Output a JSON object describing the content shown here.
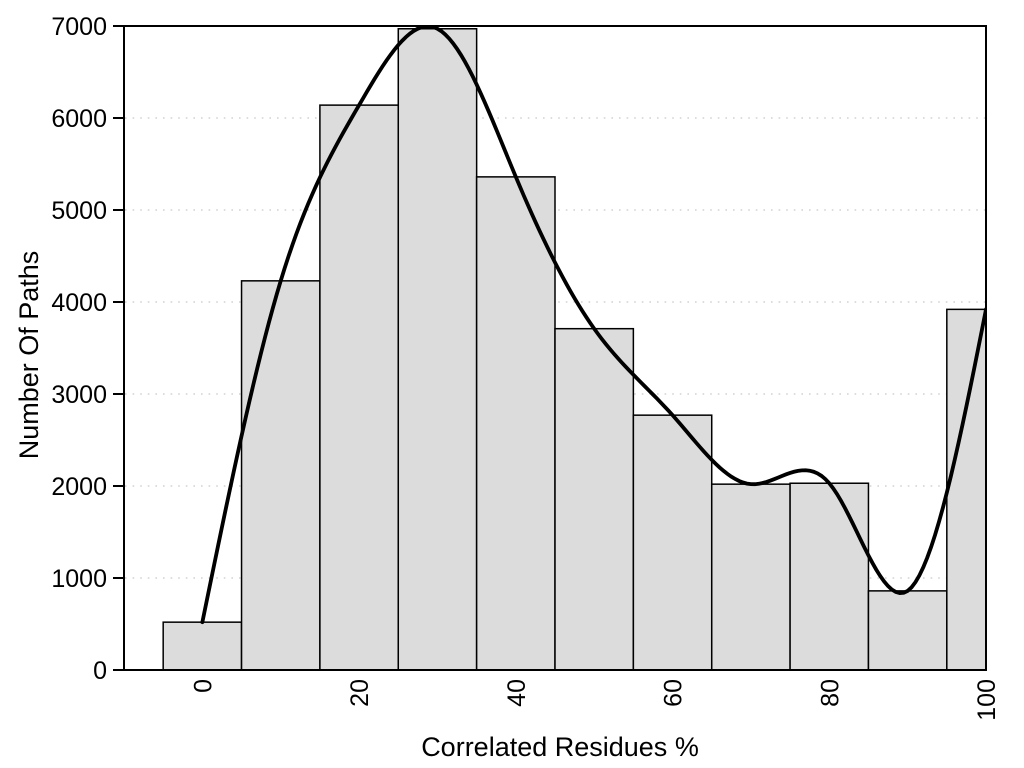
{
  "chart_data": {
    "type": "bar",
    "subtype": "histogram-with-smooth-spline-overlay",
    "title": "",
    "xlabel": "Correlated Residues %",
    "ylabel": "Number Of Paths",
    "bin_centers": [
      0,
      10,
      20,
      30,
      40,
      50,
      60,
      70,
      80,
      90,
      100
    ],
    "bin_width": 10,
    "values": [
      520,
      4230,
      6140,
      6970,
      5360,
      3710,
      2770,
      2020,
      2030,
      860,
      3920
    ],
    "series": [
      {
        "name": "path-count-histogram",
        "type": "bar",
        "x": [
          0,
          10,
          20,
          30,
          40,
          50,
          60,
          70,
          80,
          90,
          100
        ],
        "values": [
          520,
          4230,
          6140,
          6970,
          5360,
          3710,
          2770,
          2020,
          2030,
          860,
          3920
        ]
      },
      {
        "name": "smooth-spline-curve",
        "type": "line",
        "x": [
          0,
          10,
          20,
          30,
          40,
          50,
          60,
          70,
          80,
          90,
          100
        ],
        "values": [
          520,
          4230,
          6140,
          6970,
          5360,
          3710,
          2770,
          2020,
          2030,
          860,
          3920
        ],
        "interpolation": "natural-cubic-spline"
      }
    ],
    "xticks": [
      0,
      20,
      40,
      60,
      80,
      100
    ],
    "yticks": [
      0,
      1000,
      2000,
      3000,
      4000,
      5000,
      6000,
      7000
    ],
    "xlim": [
      -10,
      100
    ],
    "ylim": [
      0,
      7000
    ],
    "grid": {
      "horizontal_dotted_at": [
        1000,
        2000,
        3000,
        4000,
        5000,
        6000
      ]
    },
    "x_tick_label_rotation_deg": -90,
    "colors": {
      "bar_fill": "#dcdcdc",
      "bar_border": "#000000",
      "curve": "#000000",
      "grid": "#d2d2d2",
      "axis": "#000000",
      "text": "#000000",
      "background": "#ffffff"
    }
  }
}
